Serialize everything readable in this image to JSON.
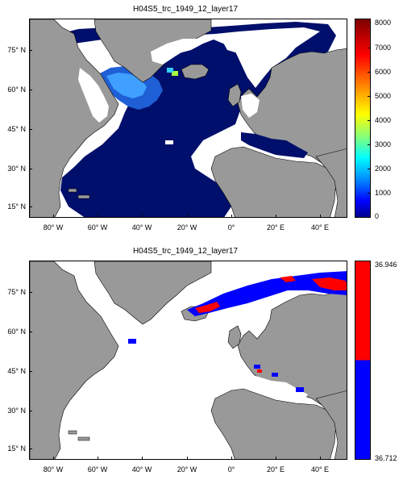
{
  "panels": [
    {
      "title": "H04S5_trc_1949_12_layer17",
      "lat_labels": [
        "75° N",
        "60° N",
        "45° N",
        "30° N",
        "15° N"
      ],
      "lon_labels": [
        "80° W",
        "60° W",
        "40° W",
        "20° W",
        "0°",
        "20° E",
        "40° E"
      ],
      "colorbar": {
        "type": "jet",
        "labels": [
          "8000",
          "7000",
          "6000",
          "5000",
          "4000",
          "3000",
          "2000",
          "1000",
          "0"
        ],
        "range": [
          0,
          8000
        ]
      }
    },
    {
      "title": "H04S5_trc_1949_12_layer17",
      "lat_labels": [
        "75° N",
        "60° N",
        "45° N",
        "30° N",
        "15° N"
      ],
      "lon_labels": [
        "80° W",
        "60° W",
        "40° W",
        "20° W",
        "0°",
        "20° E",
        "40° E"
      ],
      "colorbar": {
        "type": "binary",
        "labels": [
          "36.946",
          "36.712"
        ],
        "range": [
          36.712,
          36.946
        ]
      }
    }
  ],
  "colors": {
    "land": "#999999",
    "ocean_top": "#000f6b",
    "water_white": "#ffffff",
    "high": "#ff0000",
    "low": "#0000ff"
  }
}
